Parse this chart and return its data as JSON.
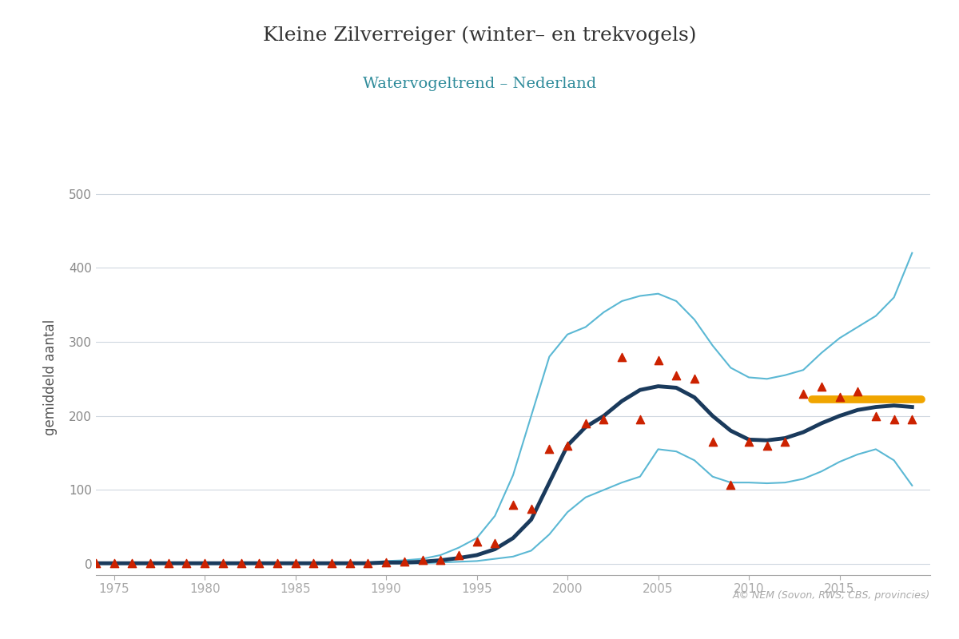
{
  "title": "Kleine Zilverreiger (winter– en trekvogels)",
  "subtitle": "Watervogeltrend – Nederland",
  "title_color": "#333333",
  "subtitle_color": "#2e8b9a",
  "ylabel": "gemiddeld aantal",
  "background_color": "#ffffff",
  "grid_color": "#d0d8e0",
  "xlim": [
    1974,
    2020
  ],
  "ylim": [
    -15,
    520
  ],
  "yticks": [
    0,
    100,
    200,
    300,
    400,
    500
  ],
  "xticks": [
    1975,
    1980,
    1985,
    1990,
    1995,
    2000,
    2005,
    2010,
    2015
  ],
  "dark_line_color": "#1a3a5c",
  "ci_line_color": "#5bb8d4",
  "triangle_color": "#cc2200",
  "ref_line_color": "#f0a500",
  "copyright_text": "Â© NEM (Sovon, RWS, CBS, provincies)",
  "dark_line_x": [
    1974,
    1975,
    1976,
    1977,
    1978,
    1979,
    1980,
    1981,
    1982,
    1983,
    1984,
    1985,
    1986,
    1987,
    1988,
    1989,
    1990,
    1991,
    1992,
    1993,
    1994,
    1995,
    1996,
    1997,
    1998,
    1999,
    2000,
    2001,
    2002,
    2003,
    2004,
    2005,
    2006,
    2007,
    2008,
    2009,
    2010,
    2011,
    2012,
    2013,
    2014,
    2015,
    2016,
    2017,
    2018,
    2019
  ],
  "dark_line_y": [
    1,
    1,
    1,
    1,
    1,
    1,
    1,
    1,
    1,
    1,
    1,
    1,
    1,
    1,
    1,
    1,
    2,
    2,
    3,
    5,
    8,
    12,
    20,
    35,
    60,
    110,
    160,
    185,
    200,
    220,
    235,
    240,
    238,
    225,
    200,
    180,
    168,
    167,
    170,
    178,
    190,
    200,
    208,
    212,
    214,
    212
  ],
  "ci_upper_x": [
    1974,
    1975,
    1976,
    1977,
    1978,
    1979,
    1980,
    1981,
    1982,
    1983,
    1984,
    1985,
    1986,
    1987,
    1988,
    1989,
    1990,
    1991,
    1992,
    1993,
    1994,
    1995,
    1996,
    1997,
    1998,
    1999,
    2000,
    2001,
    2002,
    2003,
    2004,
    2005,
    2006,
    2007,
    2008,
    2009,
    2010,
    2011,
    2012,
    2013,
    2014,
    2015,
    2016,
    2017,
    2018,
    2019
  ],
  "ci_upper_y": [
    2,
    2,
    2,
    2,
    2,
    2,
    2,
    2,
    2,
    2,
    2,
    2,
    2,
    2,
    2,
    2,
    4,
    5,
    7,
    12,
    22,
    35,
    65,
    120,
    200,
    280,
    310,
    320,
    340,
    355,
    362,
    365,
    355,
    330,
    295,
    265,
    252,
    250,
    255,
    262,
    285,
    305,
    320,
    335,
    360,
    420
  ],
  "ci_lower_x": [
    1974,
    1975,
    1976,
    1977,
    1978,
    1979,
    1980,
    1981,
    1982,
    1983,
    1984,
    1985,
    1986,
    1987,
    1988,
    1989,
    1990,
    1991,
    1992,
    1993,
    1994,
    1995,
    1996,
    1997,
    1998,
    1999,
    2000,
    2001,
    2002,
    2003,
    2004,
    2005,
    2006,
    2007,
    2008,
    2009,
    2010,
    2011,
    2012,
    2013,
    2014,
    2015,
    2016,
    2017,
    2018,
    2019
  ],
  "ci_lower_y": [
    0,
    0,
    0,
    0,
    0,
    0,
    0,
    0,
    0,
    0,
    0,
    0,
    0,
    0,
    0,
    0,
    1,
    1,
    1,
    2,
    3,
    4,
    7,
    10,
    18,
    40,
    70,
    90,
    100,
    110,
    118,
    155,
    152,
    140,
    118,
    110,
    110,
    109,
    110,
    115,
    125,
    138,
    148,
    155,
    140,
    106
  ],
  "triangles_x": [
    1974,
    1975,
    1976,
    1977,
    1978,
    1979,
    1980,
    1981,
    1982,
    1983,
    1984,
    1985,
    1986,
    1987,
    1988,
    1989,
    1990,
    1991,
    1992,
    1993,
    1994,
    1995,
    1996,
    1997,
    1998,
    1999,
    2000,
    2001,
    2002,
    2003,
    2004,
    2005,
    2006,
    2007,
    2008,
    2009,
    2010,
    2011,
    2012,
    2013,
    2014,
    2015,
    2016,
    2017,
    2018,
    2019
  ],
  "triangles_y": [
    1,
    1,
    1,
    1,
    1,
    1,
    1,
    1,
    1,
    1,
    1,
    1,
    1,
    1,
    1,
    1,
    2,
    3,
    5,
    6,
    12,
    30,
    28,
    80,
    75,
    155,
    160,
    190,
    195,
    280,
    195,
    275,
    255,
    250,
    165,
    107,
    165,
    160,
    165,
    230,
    240,
    225,
    233,
    200,
    195,
    195
  ],
  "ref_line_x": [
    2013.5,
    2019.5
  ],
  "ref_line_y": [
    222,
    222
  ]
}
